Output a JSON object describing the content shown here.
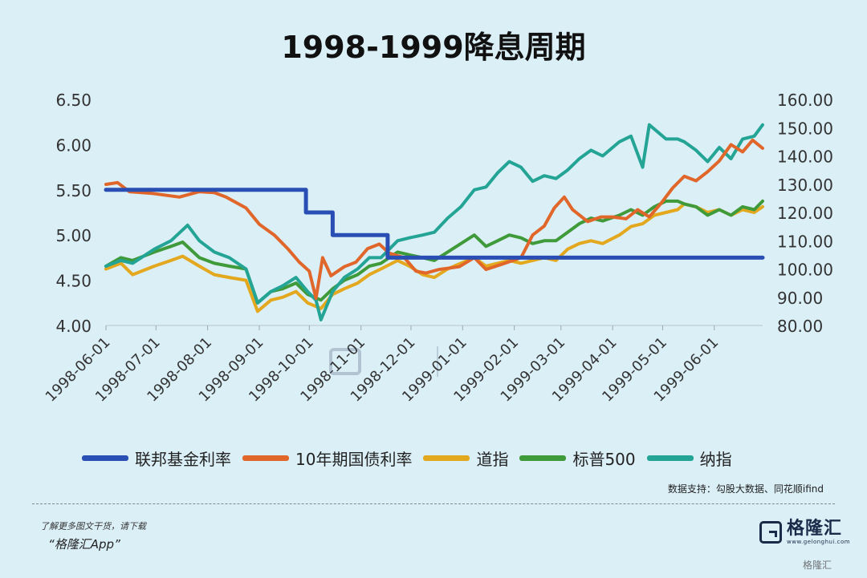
{
  "title": "1998-1999降息周期",
  "source_note": "数据支持：勾股大数据、同花顺ifind",
  "promo": {
    "line1": "了解更多图文干货，请下载",
    "line2": "“格隆汇App”"
  },
  "brand": {
    "name": "格隆汇",
    "url": "www.gelonghui.com",
    "watermark": "格隆汇"
  },
  "chart_data": {
    "type": "line",
    "x_tick_labels": [
      "1998-06-01",
      "1998-07-01",
      "1998-08-01",
      "1998-09-01",
      "1998-10-01",
      "1998-11-01",
      "1998-12-01",
      "1999-01-01",
      "1999-02-01",
      "1999-03-01",
      "1999-04-01",
      "1999-05-01",
      "1999-06-01"
    ],
    "x_range": [
      "1998-06-01",
      "1999-06-30"
    ],
    "y_left": {
      "ticks": [
        "4.00",
        "4.50",
        "5.00",
        "5.50",
        "6.00",
        "6.50"
      ],
      "min": 4.0,
      "max": 6.5
    },
    "y_right": {
      "ticks": [
        "80.00",
        "90.00",
        "100.00",
        "110.00",
        "120.00",
        "130.00",
        "140.00",
        "150.00",
        "160.00"
      ],
      "min": 80,
      "max": 160
    },
    "legend_position": "bottom",
    "grid": false,
    "series": [
      {
        "name": "联邦基金利率",
        "axis": "left",
        "color": "#2a4fb4",
        "step": true,
        "points": [
          [
            "1998-06-01",
            5.5
          ],
          [
            "1998-09-29",
            5.25
          ],
          [
            "1998-10-15",
            5.0
          ],
          [
            "1998-11-17",
            4.75
          ],
          [
            "1999-06-30",
            4.75
          ]
        ]
      },
      {
        "name": "10年期国债利率",
        "axis": "left",
        "color": "#e0662a",
        "points": [
          [
            "1998-06-01",
            5.56
          ],
          [
            "1998-06-08",
            5.58
          ],
          [
            "1998-06-15",
            5.48
          ],
          [
            "1998-06-29",
            5.46
          ],
          [
            "1998-07-15",
            5.42
          ],
          [
            "1998-07-27",
            5.48
          ],
          [
            "1998-08-05",
            5.47
          ],
          [
            "1998-08-12",
            5.42
          ],
          [
            "1998-08-24",
            5.3
          ],
          [
            "1998-09-01",
            5.12
          ],
          [
            "1998-09-10",
            5.0
          ],
          [
            "1998-09-18",
            4.85
          ],
          [
            "1998-09-25",
            4.7
          ],
          [
            "1998-10-01",
            4.6
          ],
          [
            "1998-10-05",
            4.3
          ],
          [
            "1998-10-09",
            4.75
          ],
          [
            "1998-10-14",
            4.55
          ],
          [
            "1998-10-22",
            4.65
          ],
          [
            "1998-10-29",
            4.7
          ],
          [
            "1998-11-05",
            4.85
          ],
          [
            "1998-11-12",
            4.9
          ],
          [
            "1998-11-18",
            4.8
          ],
          [
            "1998-11-27",
            4.75
          ],
          [
            "1998-12-04",
            4.6
          ],
          [
            "1998-12-10",
            4.58
          ],
          [
            "1998-12-18",
            4.62
          ],
          [
            "1998-12-30",
            4.65
          ],
          [
            "1999-01-08",
            4.75
          ],
          [
            "1999-01-15",
            4.62
          ],
          [
            "1999-01-25",
            4.68
          ],
          [
            "1999-02-05",
            4.75
          ],
          [
            "1999-02-12",
            5.0
          ],
          [
            "1999-02-19",
            5.1
          ],
          [
            "1999-02-25",
            5.3
          ],
          [
            "1999-03-03",
            5.42
          ],
          [
            "1999-03-08",
            5.28
          ],
          [
            "1999-03-17",
            5.15
          ],
          [
            "1999-03-25",
            5.2
          ],
          [
            "1999-04-01",
            5.2
          ],
          [
            "1999-04-09",
            5.18
          ],
          [
            "1999-04-16",
            5.28
          ],
          [
            "1999-04-23",
            5.2
          ],
          [
            "1999-04-30",
            5.35
          ],
          [
            "1999-05-07",
            5.52
          ],
          [
            "1999-05-14",
            5.65
          ],
          [
            "1999-05-21",
            5.6
          ],
          [
            "1999-05-28",
            5.7
          ],
          [
            "1999-06-04",
            5.82
          ],
          [
            "1999-06-11",
            6.0
          ],
          [
            "1999-06-18",
            5.92
          ],
          [
            "1999-06-24",
            6.05
          ],
          [
            "1999-06-30",
            5.96
          ]
        ]
      },
      {
        "name": "道指",
        "axis": "right",
        "color": "#e3a81d",
        "points": [
          [
            "1998-06-01",
            100
          ],
          [
            "1998-06-10",
            102
          ],
          [
            "1998-06-17",
            98
          ],
          [
            "1998-06-30",
            101
          ],
          [
            "1998-07-10",
            103
          ],
          [
            "1998-07-17",
            104.5
          ],
          [
            "1998-07-27",
            101
          ],
          [
            "1998-08-05",
            98
          ],
          [
            "1998-08-14",
            97
          ],
          [
            "1998-08-24",
            96
          ],
          [
            "1998-08-31",
            85
          ],
          [
            "1998-09-08",
            89
          ],
          [
            "1998-09-15",
            90
          ],
          [
            "1998-09-23",
            92
          ],
          [
            "1998-09-30",
            88
          ],
          [
            "1998-10-08",
            86
          ],
          [
            "1998-10-15",
            91
          ],
          [
            "1998-10-22",
            93
          ],
          [
            "1998-10-30",
            95
          ],
          [
            "1998-11-06",
            98
          ],
          [
            "1998-11-13",
            100
          ],
          [
            "1998-11-23",
            103
          ],
          [
            "1998-11-30",
            101
          ],
          [
            "1998-12-08",
            98
          ],
          [
            "1998-12-15",
            97
          ],
          [
            "1998-12-23",
            100
          ],
          [
            "1998-12-31",
            102
          ],
          [
            "1999-01-08",
            104
          ],
          [
            "1999-01-15",
            101
          ],
          [
            "1999-01-22",
            102
          ],
          [
            "1999-01-29",
            103
          ],
          [
            "1999-02-05",
            102
          ],
          [
            "1999-02-12",
            103
          ],
          [
            "1999-02-19",
            104
          ],
          [
            "1999-02-26",
            103
          ],
          [
            "1999-03-05",
            107
          ],
          [
            "1999-03-12",
            109
          ],
          [
            "1999-03-19",
            110
          ],
          [
            "1999-03-26",
            109
          ],
          [
            "1999-04-05",
            112
          ],
          [
            "1999-04-12",
            115
          ],
          [
            "1999-04-19",
            116
          ],
          [
            "1999-04-26",
            119
          ],
          [
            "1999-05-03",
            120
          ],
          [
            "1999-05-10",
            121
          ],
          [
            "1999-05-14",
            123
          ],
          [
            "1999-05-21",
            122
          ],
          [
            "1999-05-28",
            120
          ],
          [
            "1999-06-04",
            121
          ],
          [
            "1999-06-11",
            119
          ],
          [
            "1999-06-18",
            121
          ],
          [
            "1999-06-25",
            120
          ],
          [
            "1999-06-30",
            122
          ]
        ]
      },
      {
        "name": "标普500",
        "axis": "right",
        "color": "#3f9a3a",
        "points": [
          [
            "1998-06-01",
            101
          ],
          [
            "1998-06-10",
            104
          ],
          [
            "1998-06-17",
            103
          ],
          [
            "1998-06-30",
            106
          ],
          [
            "1998-07-10",
            108
          ],
          [
            "1998-07-17",
            109.5
          ],
          [
            "1998-07-27",
            104
          ],
          [
            "1998-08-05",
            102
          ],
          [
            "1998-08-14",
            101
          ],
          [
            "1998-08-24",
            100
          ],
          [
            "1998-08-31",
            88
          ],
          [
            "1998-09-08",
            92
          ],
          [
            "1998-09-15",
            93
          ],
          [
            "1998-09-23",
            95
          ],
          [
            "1998-09-30",
            91
          ],
          [
            "1998-10-08",
            89
          ],
          [
            "1998-10-15",
            93
          ],
          [
            "1998-10-22",
            96
          ],
          [
            "1998-10-30",
            98
          ],
          [
            "1998-11-06",
            101
          ],
          [
            "1998-11-13",
            102
          ],
          [
            "1998-11-23",
            106
          ],
          [
            "1998-11-30",
            105
          ],
          [
            "1998-12-08",
            104
          ],
          [
            "1998-12-15",
            103
          ],
          [
            "1998-12-23",
            106
          ],
          [
            "1998-12-31",
            109
          ],
          [
            "1999-01-08",
            112
          ],
          [
            "1999-01-15",
            108
          ],
          [
            "1999-01-22",
            110
          ],
          [
            "1999-01-29",
            112
          ],
          [
            "1999-02-05",
            111
          ],
          [
            "1999-02-12",
            109
          ],
          [
            "1999-02-19",
            110
          ],
          [
            "1999-02-26",
            110
          ],
          [
            "1999-03-05",
            113
          ],
          [
            "1999-03-12",
            116
          ],
          [
            "1999-03-19",
            118
          ],
          [
            "1999-03-26",
            117
          ],
          [
            "1999-04-05",
            119
          ],
          [
            "1999-04-12",
            121
          ],
          [
            "1999-04-19",
            119
          ],
          [
            "1999-04-26",
            122
          ],
          [
            "1999-05-03",
            124
          ],
          [
            "1999-05-10",
            124
          ],
          [
            "1999-05-14",
            123
          ],
          [
            "1999-05-21",
            122
          ],
          [
            "1999-05-28",
            119
          ],
          [
            "1999-06-04",
            121
          ],
          [
            "1999-06-11",
            119
          ],
          [
            "1999-06-18",
            122
          ],
          [
            "1999-06-25",
            121
          ],
          [
            "1999-06-30",
            124
          ]
        ]
      },
      {
        "name": "纳指",
        "axis": "right",
        "color": "#23a495",
        "points": [
          [
            "1998-06-01",
            101
          ],
          [
            "1998-06-10",
            103
          ],
          [
            "1998-06-17",
            102
          ],
          [
            "1998-06-30",
            107
          ],
          [
            "1998-07-10",
            110
          ],
          [
            "1998-07-20",
            115.5
          ],
          [
            "1998-07-27",
            110
          ],
          [
            "1998-08-05",
            106
          ],
          [
            "1998-08-14",
            104
          ],
          [
            "1998-08-24",
            100
          ],
          [
            "1998-08-31",
            88
          ],
          [
            "1998-09-08",
            92
          ],
          [
            "1998-09-15",
            94
          ],
          [
            "1998-09-23",
            97
          ],
          [
            "1998-09-30",
            92
          ],
          [
            "1998-10-05",
            89
          ],
          [
            "1998-10-08",
            82
          ],
          [
            "1998-10-15",
            92
          ],
          [
            "1998-10-22",
            97
          ],
          [
            "1998-10-30",
            100
          ],
          [
            "1998-11-06",
            104
          ],
          [
            "1998-11-13",
            104
          ],
          [
            "1998-11-23",
            110
          ],
          [
            "1998-11-30",
            111
          ],
          [
            "1998-12-08",
            112
          ],
          [
            "1998-12-15",
            113
          ],
          [
            "1998-12-23",
            118
          ],
          [
            "1998-12-31",
            122
          ],
          [
            "1999-01-08",
            128
          ],
          [
            "1999-01-15",
            129
          ],
          [
            "1999-01-22",
            134
          ],
          [
            "1999-01-29",
            138
          ],
          [
            "1999-02-05",
            136
          ],
          [
            "1999-02-12",
            131
          ],
          [
            "1999-02-19",
            133
          ],
          [
            "1999-02-26",
            132
          ],
          [
            "1999-03-05",
            135
          ],
          [
            "1999-03-12",
            139
          ],
          [
            "1999-03-19",
            142
          ],
          [
            "1999-03-26",
            140
          ],
          [
            "1999-04-05",
            145
          ],
          [
            "1999-04-12",
            147
          ],
          [
            "1999-04-19",
            136
          ],
          [
            "1999-04-23",
            151
          ],
          [
            "1999-05-03",
            146
          ],
          [
            "1999-05-10",
            146
          ],
          [
            "1999-05-14",
            145
          ],
          [
            "1999-05-21",
            142
          ],
          [
            "1999-05-28",
            138
          ],
          [
            "1999-06-04",
            143
          ],
          [
            "1999-06-11",
            139
          ],
          [
            "1999-06-18",
            146
          ],
          [
            "1999-06-25",
            147
          ],
          [
            "1999-06-30",
            151
          ]
        ]
      }
    ]
  }
}
